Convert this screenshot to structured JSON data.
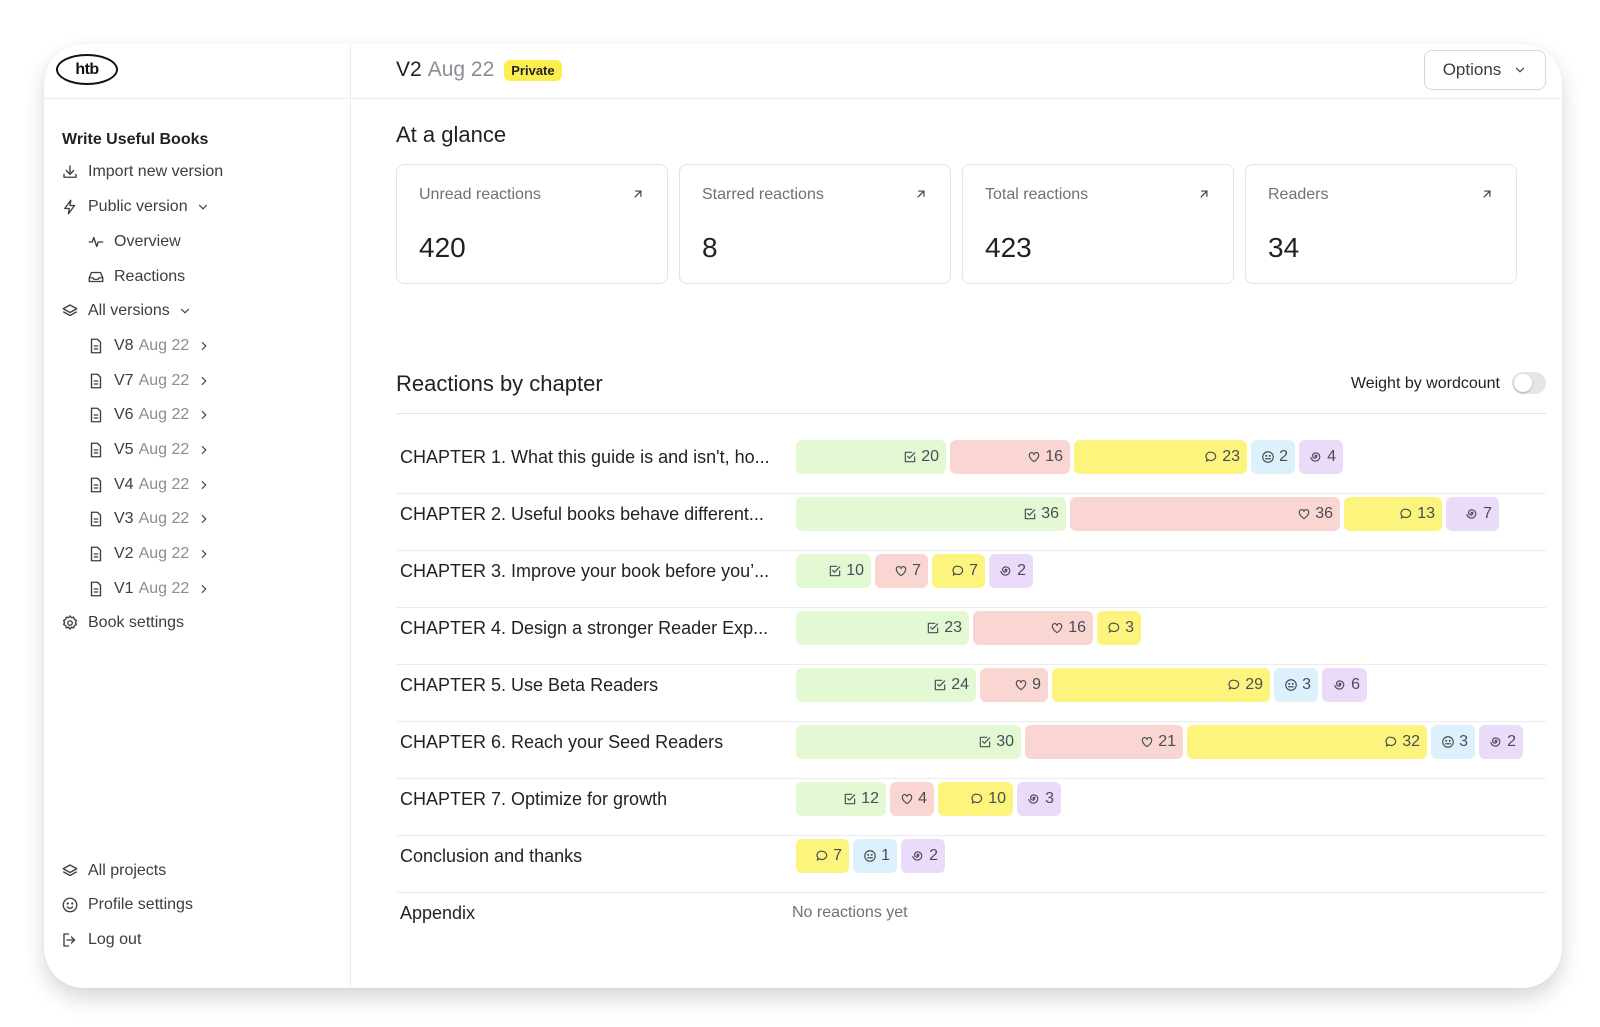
{
  "logo": {
    "text": "htb"
  },
  "sidebar": {
    "project_title": "Write Useful Books",
    "import_label": "Import new version",
    "public_version_label": "Public version",
    "overview_label": "Overview",
    "reactions_label": "Reactions",
    "all_versions_label": "All versions",
    "versions": [
      {
        "name": "V8",
        "date": "Aug 22"
      },
      {
        "name": "V7",
        "date": "Aug 22"
      },
      {
        "name": "V6",
        "date": "Aug 22"
      },
      {
        "name": "V5",
        "date": "Aug 22"
      },
      {
        "name": "V4",
        "date": "Aug 22"
      },
      {
        "name": "V3",
        "date": "Aug 22"
      },
      {
        "name": "V2",
        "date": "Aug 22"
      },
      {
        "name": "V1",
        "date": "Aug 22"
      }
    ],
    "book_settings_label": "Book settings",
    "all_projects_label": "All projects",
    "profile_settings_label": "Profile settings",
    "logout_label": "Log out"
  },
  "header": {
    "version_name": "V2",
    "version_date": "Aug 22",
    "badge": "Private",
    "options_label": "Options"
  },
  "glance": {
    "heading": "At a glance",
    "cards": [
      {
        "label": "Unread reactions",
        "value": "420"
      },
      {
        "label": "Starred reactions",
        "value": "8"
      },
      {
        "label": "Total reactions",
        "value": "423"
      },
      {
        "label": "Readers",
        "value": "34"
      }
    ]
  },
  "chapters_section": {
    "heading": "Reactions by chapter",
    "weight_label": "Weight by wordcount",
    "weight_enabled": false,
    "empty_label": "No reactions yet",
    "rows": [
      {
        "title": "CHAPTER 1. What this guide is and isn't, ho...",
        "reactions": {
          "check": 20,
          "heart": 16,
          "comment": 23,
          "confused": 2,
          "spiral": 4
        }
      },
      {
        "title": "CHAPTER 2. Useful books behave different...",
        "reactions": {
          "check": 36,
          "heart": 36,
          "comment": 13,
          "spiral": 7
        }
      },
      {
        "title": "CHAPTER 3. Improve your book before you’...",
        "reactions": {
          "check": 10,
          "heart": 7,
          "comment": 7,
          "spiral": 2
        }
      },
      {
        "title": "CHAPTER 4. Design a stronger Reader Exp...",
        "reactions": {
          "check": 23,
          "heart": 16,
          "comment": 3
        }
      },
      {
        "title": "CHAPTER 5. Use Beta Readers",
        "reactions": {
          "check": 24,
          "heart": 9,
          "comment": 29,
          "confused": 3,
          "spiral": 6
        }
      },
      {
        "title": "CHAPTER 6. Reach your Seed Readers",
        "reactions": {
          "check": 30,
          "heart": 21,
          "comment": 32,
          "confused": 3,
          "spiral": 2
        }
      },
      {
        "title": "CHAPTER 7. Optimize for growth",
        "reactions": {
          "check": 12,
          "heart": 4,
          "comment": 10,
          "spiral": 3
        }
      },
      {
        "title": "Conclusion and thanks",
        "reactions": {
          "comment": 7,
          "confused": 1,
          "spiral": 2
        }
      },
      {
        "title": "Appendix",
        "reactions": {}
      }
    ]
  },
  "reaction_types": [
    {
      "key": "check",
      "icon": "check-square-icon",
      "color": "#e3f9d4"
    },
    {
      "key": "heart",
      "icon": "heart-icon",
      "color": "#f9d6d1"
    },
    {
      "key": "comment",
      "icon": "comment-icon",
      "color": "#fcf47c"
    },
    {
      "key": "confused",
      "icon": "confused-face-icon",
      "color": "#dcf1fb"
    },
    {
      "key": "spiral",
      "icon": "spiral-icon",
      "color": "#eadbf9"
    }
  ],
  "colors": {
    "badge_yellow": "#fcee4f",
    "border": "#e2e3e6",
    "muted_text": "#8a8d93"
  }
}
